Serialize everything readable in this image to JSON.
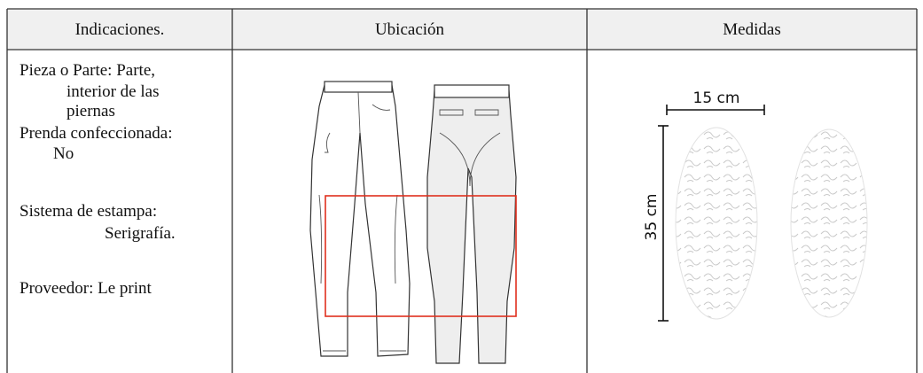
{
  "table": {
    "headers": [
      "Indicaciones.",
      "Ubicación",
      "Medidas"
    ],
    "indications": [
      "Pieza o Parte: Parte,",
      "interior de las",
      "piernas",
      "Prenda confeccionada:",
      "No",
      "Sistema de estampa:",
      "Serigrafía.",
      "Proveedor: Le print"
    ],
    "measures": {
      "width": "15 cm",
      "height": "35 cm"
    }
  }
}
